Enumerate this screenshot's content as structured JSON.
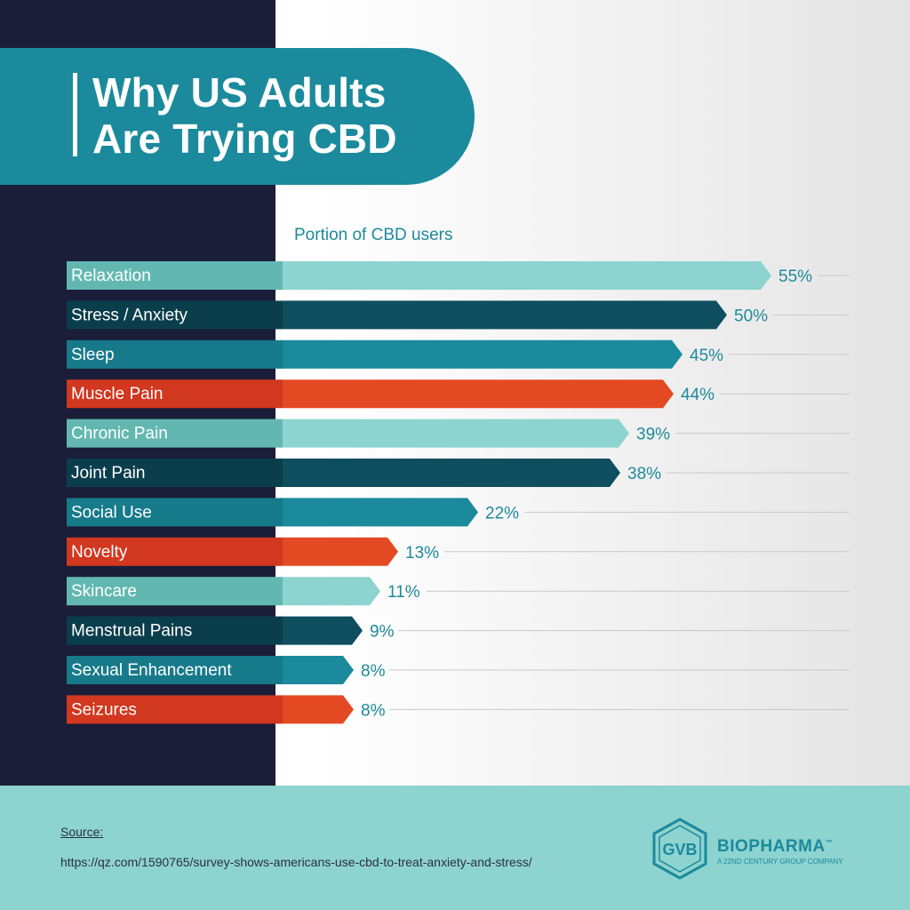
{
  "title": {
    "line1": "Why US Adults",
    "line2": "Are Trying CBD"
  },
  "chart_data": {
    "type": "bar",
    "orientation": "horizontal",
    "axis_caption": "Portion of CBD users",
    "categories": [
      "Relaxation",
      "Stress / Anxiety",
      "Sleep",
      "Muscle Pain",
      "Chronic Pain",
      "Joint Pain",
      "Social Use",
      "Novelty",
      "Skincare",
      "Menstrual Pains",
      "Sexual Enhancement",
      "Seizures"
    ],
    "values": [
      55,
      50,
      45,
      44,
      39,
      38,
      22,
      13,
      11,
      9,
      8,
      8
    ],
    "value_labels": [
      "55%",
      "50%",
      "45%",
      "44%",
      "39%",
      "38%",
      "22%",
      "13%",
      "11%",
      "9%",
      "8%",
      "8%"
    ],
    "value_unit": "%",
    "bar_colors": [
      "#8dd3cf",
      "#0e4e5f",
      "#1a8a9c",
      "#e34a24",
      "#8dd3cf",
      "#0e4e5f",
      "#1a8a9c",
      "#e34a24",
      "#8dd3cf",
      "#0e4e5f",
      "#1a8a9c",
      "#e34a24"
    ],
    "label_colors": [
      "#62b8b1",
      "#0b3e4c",
      "#177a8b",
      "#d2371f",
      "#62b8b1",
      "#0b3e4c",
      "#177a8b",
      "#d2371f",
      "#62b8b1",
      "#0b3e4c",
      "#177a8b",
      "#d2371f"
    ],
    "value_label_color": "#1f8a9a",
    "grid": true
  },
  "footer": {
    "source_label": "Source:",
    "source_url": "https://qz.com/1590765/survey-shows-americans-use-cbd-to-treat-anxiety-and-stress/"
  },
  "logo": {
    "mark": "GVB",
    "brand": "BIOPHARMA",
    "trademark": "™",
    "tagline": "A 22ND CENTURY GROUP COMPANY",
    "icon": "hexagon-logo-icon"
  },
  "colors": {
    "dark_panel": "#1a1e38",
    "teal": "#1b8a9c",
    "footer_bg": "#8dd3cf"
  }
}
